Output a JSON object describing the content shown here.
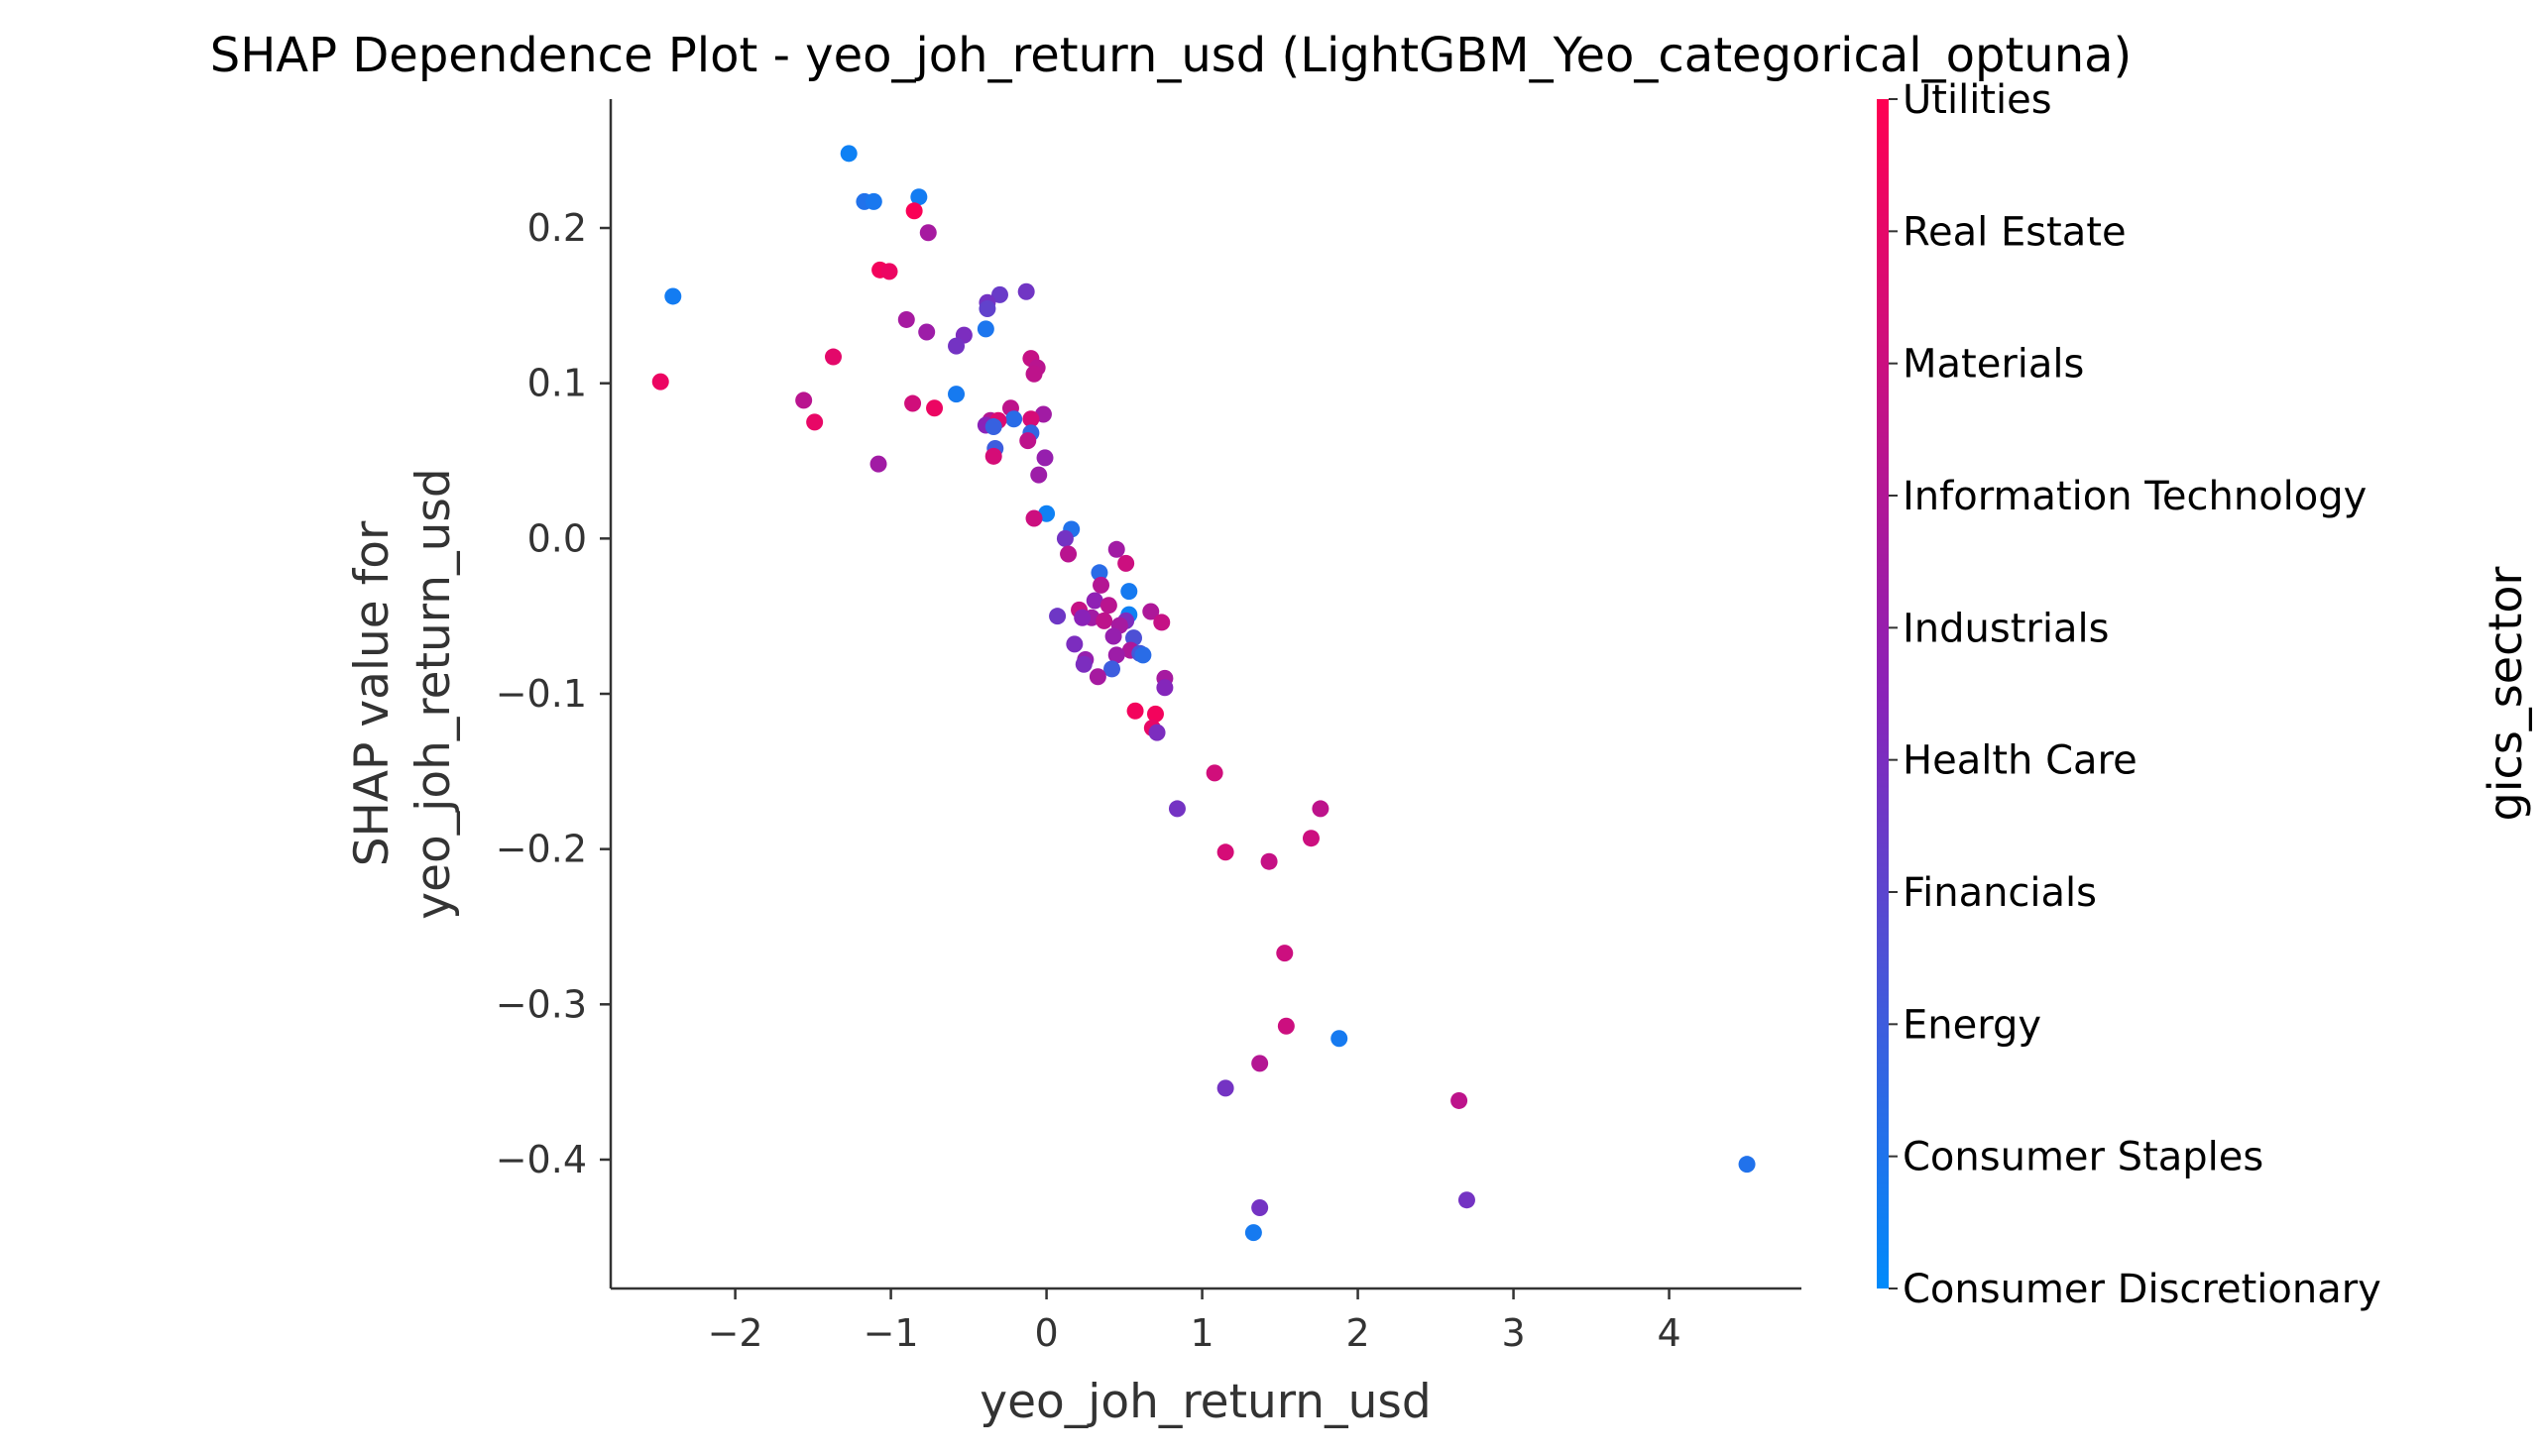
{
  "chart_data": {
    "type": "scatter",
    "title": "SHAP Dependence Plot - yeo_joh_return_usd (LightGBM_Yeo_categorical_optuna)",
    "xlabel": "yeo_joh_return_usd",
    "ylabel_lines": [
      "SHAP value for",
      "yeo_joh_return_usd"
    ],
    "xlim": [
      -2.8,
      4.85
    ],
    "ylim": [
      -0.483,
      0.283
    ],
    "x_ticks": [
      -2,
      -1,
      0,
      1,
      2,
      3,
      4
    ],
    "x_tick_labels": [
      "−2",
      "−1",
      "0",
      "1",
      "2",
      "3",
      "4"
    ],
    "y_ticks": [
      0.2,
      0.1,
      0.0,
      -0.1,
      -0.2,
      -0.3,
      -0.4
    ],
    "y_tick_labels": [
      "0.2",
      "0.1",
      "0.0",
      "−0.1",
      "−0.2",
      "−0.3",
      "−0.4"
    ],
    "colorbar": {
      "label": "gics_sector",
      "categories": [
        "Consumer Discretionary",
        "Consumer Staples",
        "Energy",
        "Financials",
        "Health Care",
        "Industrials",
        "Information Technology",
        "Materials",
        "Real Estate",
        "Utilities"
      ],
      "color_low": "#008bfb",
      "color_mid": "#8a22b8",
      "color_high": "#ff0052"
    },
    "points": [
      {
        "x": -1.27,
        "y": 0.248,
        "c": 0.05
      },
      {
        "x": -1.17,
        "y": 0.217,
        "c": 0.12
      },
      {
        "x": -1.11,
        "y": 0.217,
        "c": 0.09
      },
      {
        "x": -0.82,
        "y": 0.22,
        "c": 0.07
      },
      {
        "x": -0.85,
        "y": 0.211,
        "c": 0.98
      },
      {
        "x": -0.76,
        "y": 0.197,
        "c": 0.62
      },
      {
        "x": -1.07,
        "y": 0.173,
        "c": 0.95
      },
      {
        "x": -1.01,
        "y": 0.172,
        "c": 0.92
      },
      {
        "x": -2.4,
        "y": 0.156,
        "c": 0.07
      },
      {
        "x": -0.3,
        "y": 0.157,
        "c": 0.38
      },
      {
        "x": -0.13,
        "y": 0.159,
        "c": 0.41
      },
      {
        "x": -0.38,
        "y": 0.152,
        "c": 0.42
      },
      {
        "x": -0.38,
        "y": 0.148,
        "c": 0.35
      },
      {
        "x": -0.9,
        "y": 0.141,
        "c": 0.62
      },
      {
        "x": -0.39,
        "y": 0.135,
        "c": 0.1
      },
      {
        "x": -0.77,
        "y": 0.133,
        "c": 0.58
      },
      {
        "x": -0.53,
        "y": 0.131,
        "c": 0.45
      },
      {
        "x": -0.58,
        "y": 0.124,
        "c": 0.42
      },
      {
        "x": -1.37,
        "y": 0.117,
        "c": 0.88
      },
      {
        "x": -0.1,
        "y": 0.116,
        "c": 0.75
      },
      {
        "x": -0.06,
        "y": 0.11,
        "c": 0.7
      },
      {
        "x": -0.08,
        "y": 0.106,
        "c": 0.72
      },
      {
        "x": -2.48,
        "y": 0.101,
        "c": 0.92
      },
      {
        "x": -0.58,
        "y": 0.093,
        "c": 0.08
      },
      {
        "x": -1.56,
        "y": 0.089,
        "c": 0.7
      },
      {
        "x": -0.86,
        "y": 0.087,
        "c": 0.8
      },
      {
        "x": -0.72,
        "y": 0.084,
        "c": 0.92
      },
      {
        "x": -0.23,
        "y": 0.084,
        "c": 0.72
      },
      {
        "x": -0.02,
        "y": 0.08,
        "c": 0.6
      },
      {
        "x": -0.1,
        "y": 0.077,
        "c": 0.82
      },
      {
        "x": -0.21,
        "y": 0.077,
        "c": 0.15
      },
      {
        "x": -0.36,
        "y": 0.076,
        "c": 0.68
      },
      {
        "x": -0.31,
        "y": 0.076,
        "c": 0.85
      },
      {
        "x": -1.49,
        "y": 0.075,
        "c": 0.9
      },
      {
        "x": -0.39,
        "y": 0.073,
        "c": 0.5
      },
      {
        "x": -0.34,
        "y": 0.072,
        "c": 0.2
      },
      {
        "x": -0.1,
        "y": 0.068,
        "c": 0.18
      },
      {
        "x": -0.12,
        "y": 0.063,
        "c": 0.72
      },
      {
        "x": -0.33,
        "y": 0.058,
        "c": 0.22
      },
      {
        "x": -0.34,
        "y": 0.053,
        "c": 0.82
      },
      {
        "x": -0.01,
        "y": 0.052,
        "c": 0.55
      },
      {
        "x": -1.08,
        "y": 0.048,
        "c": 0.6
      },
      {
        "x": -0.05,
        "y": 0.041,
        "c": 0.58
      },
      {
        "x": 0.0,
        "y": 0.016,
        "c": 0.05
      },
      {
        "x": -0.08,
        "y": 0.013,
        "c": 0.78
      },
      {
        "x": 0.16,
        "y": 0.006,
        "c": 0.12
      },
      {
        "x": 0.12,
        "y": 0.0,
        "c": 0.42
      },
      {
        "x": 0.45,
        "y": -0.007,
        "c": 0.6
      },
      {
        "x": 0.14,
        "y": -0.01,
        "c": 0.7
      },
      {
        "x": 0.51,
        "y": -0.016,
        "c": 0.78
      },
      {
        "x": 0.34,
        "y": -0.022,
        "c": 0.15
      },
      {
        "x": 0.35,
        "y": -0.03,
        "c": 0.68
      },
      {
        "x": 0.53,
        "y": -0.034,
        "c": 0.08
      },
      {
        "x": 0.31,
        "y": -0.04,
        "c": 0.52
      },
      {
        "x": 0.4,
        "y": -0.043,
        "c": 0.7
      },
      {
        "x": 0.21,
        "y": -0.046,
        "c": 0.75
      },
      {
        "x": 0.67,
        "y": -0.047,
        "c": 0.65
      },
      {
        "x": 0.53,
        "y": -0.049,
        "c": 0.05
      },
      {
        "x": 0.07,
        "y": -0.05,
        "c": 0.4
      },
      {
        "x": 0.29,
        "y": -0.051,
        "c": 0.6
      },
      {
        "x": 0.23,
        "y": -0.051,
        "c": 0.5
      },
      {
        "x": 0.37,
        "y": -0.053,
        "c": 0.72
      },
      {
        "x": 0.51,
        "y": -0.053,
        "c": 0.45
      },
      {
        "x": 0.74,
        "y": -0.054,
        "c": 0.75
      },
      {
        "x": 0.47,
        "y": -0.056,
        "c": 0.62
      },
      {
        "x": 0.43,
        "y": -0.063,
        "c": 0.55
      },
      {
        "x": 0.56,
        "y": -0.064,
        "c": 0.28
      },
      {
        "x": 0.18,
        "y": -0.068,
        "c": 0.45
      },
      {
        "x": 0.54,
        "y": -0.072,
        "c": 0.65
      },
      {
        "x": 0.6,
        "y": -0.074,
        "c": 0.25
      },
      {
        "x": 0.45,
        "y": -0.075,
        "c": 0.58
      },
      {
        "x": 0.62,
        "y": -0.075,
        "c": 0.15
      },
      {
        "x": 0.25,
        "y": -0.078,
        "c": 0.55
      },
      {
        "x": 0.24,
        "y": -0.081,
        "c": 0.45
      },
      {
        "x": 0.42,
        "y": -0.084,
        "c": 0.22
      },
      {
        "x": 0.33,
        "y": -0.089,
        "c": 0.62
      },
      {
        "x": 0.76,
        "y": -0.09,
        "c": 0.62
      },
      {
        "x": 0.76,
        "y": -0.096,
        "c": 0.48
      },
      {
        "x": 0.57,
        "y": -0.111,
        "c": 0.95
      },
      {
        "x": 0.7,
        "y": -0.113,
        "c": 0.95
      },
      {
        "x": 0.68,
        "y": -0.122,
        "c": 0.9
      },
      {
        "x": 0.71,
        "y": -0.125,
        "c": 0.45
      },
      {
        "x": 1.08,
        "y": -0.151,
        "c": 0.8
      },
      {
        "x": 0.84,
        "y": -0.174,
        "c": 0.42
      },
      {
        "x": 1.76,
        "y": -0.174,
        "c": 0.72
      },
      {
        "x": 1.7,
        "y": -0.193,
        "c": 0.78
      },
      {
        "x": 1.15,
        "y": -0.202,
        "c": 0.82
      },
      {
        "x": 1.43,
        "y": -0.208,
        "c": 0.75
      },
      {
        "x": 1.53,
        "y": -0.267,
        "c": 0.78
      },
      {
        "x": 1.54,
        "y": -0.314,
        "c": 0.78
      },
      {
        "x": 1.88,
        "y": -0.322,
        "c": 0.08
      },
      {
        "x": 1.37,
        "y": -0.338,
        "c": 0.68
      },
      {
        "x": 1.15,
        "y": -0.354,
        "c": 0.42
      },
      {
        "x": 2.65,
        "y": -0.362,
        "c": 0.72
      },
      {
        "x": 4.5,
        "y": -0.403,
        "c": 0.12
      },
      {
        "x": 2.7,
        "y": -0.426,
        "c": 0.42
      },
      {
        "x": 1.37,
        "y": -0.431,
        "c": 0.42
      },
      {
        "x": 1.33,
        "y": -0.447,
        "c": 0.08
      }
    ]
  }
}
